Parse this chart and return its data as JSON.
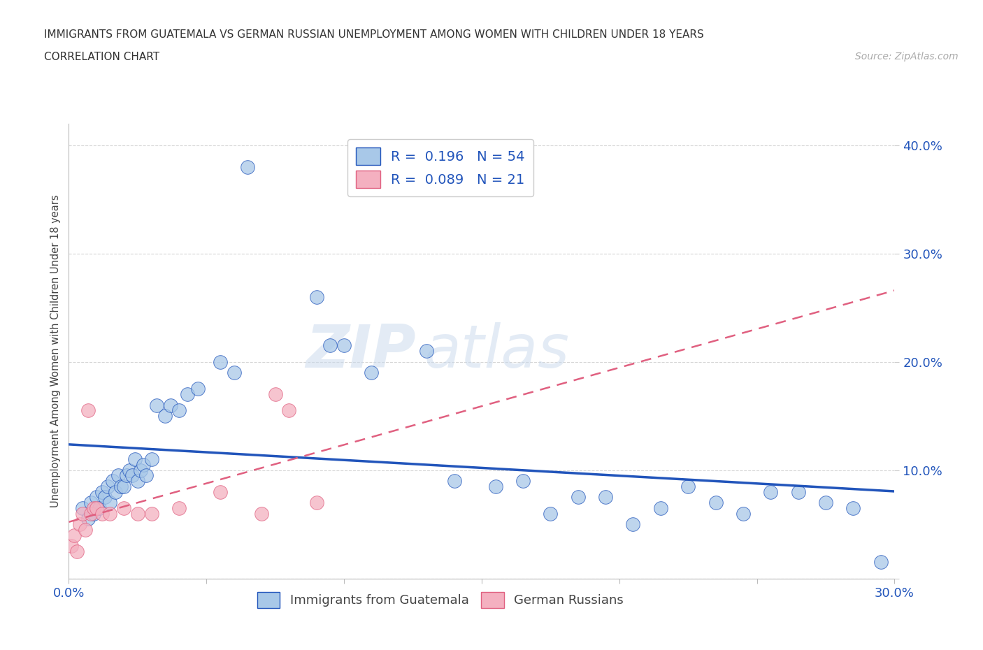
{
  "title_line1": "IMMIGRANTS FROM GUATEMALA VS GERMAN RUSSIAN UNEMPLOYMENT AMONG WOMEN WITH CHILDREN UNDER 18 YEARS",
  "title_line2": "CORRELATION CHART",
  "source_text": "Source: ZipAtlas.com",
  "ylabel": "Unemployment Among Women with Children Under 18 years",
  "xmin": 0.0,
  "xmax": 0.3,
  "ymin": 0.0,
  "ymax": 0.42,
  "xticks": [
    0.0,
    0.05,
    0.1,
    0.15,
    0.2,
    0.25,
    0.3
  ],
  "xtick_labels": [
    "0.0%",
    "",
    "",
    "",
    "",
    "",
    "30.0%"
  ],
  "yticks": [
    0.0,
    0.1,
    0.2,
    0.3,
    0.4
  ],
  "ytick_labels": [
    "",
    "10.0%",
    "20.0%",
    "30.0%",
    "40.0%"
  ],
  "color_blue": "#a8c8e8",
  "color_pink": "#f4b0c0",
  "line_blue": "#2255bb",
  "line_pink": "#e06080",
  "watermark_zip": "ZIP",
  "watermark_atlas": "atlas",
  "guatemala_x": [
    0.005,
    0.007,
    0.008,
    0.009,
    0.01,
    0.011,
    0.012,
    0.013,
    0.014,
    0.015,
    0.016,
    0.017,
    0.018,
    0.019,
    0.02,
    0.021,
    0.022,
    0.023,
    0.024,
    0.025,
    0.026,
    0.027,
    0.028,
    0.03,
    0.032,
    0.035,
    0.037,
    0.04,
    0.043,
    0.047,
    0.055,
    0.06,
    0.065,
    0.09,
    0.095,
    0.1,
    0.11,
    0.13,
    0.14,
    0.155,
    0.165,
    0.175,
    0.185,
    0.195,
    0.205,
    0.215,
    0.225,
    0.235,
    0.245,
    0.255,
    0.265,
    0.275,
    0.285,
    0.295
  ],
  "guatemala_y": [
    0.065,
    0.055,
    0.07,
    0.06,
    0.075,
    0.065,
    0.08,
    0.075,
    0.085,
    0.07,
    0.09,
    0.08,
    0.095,
    0.085,
    0.085,
    0.095,
    0.1,
    0.095,
    0.11,
    0.09,
    0.1,
    0.105,
    0.095,
    0.11,
    0.16,
    0.15,
    0.16,
    0.155,
    0.17,
    0.175,
    0.2,
    0.19,
    0.38,
    0.26,
    0.215,
    0.215,
    0.19,
    0.21,
    0.09,
    0.085,
    0.09,
    0.06,
    0.075,
    0.075,
    0.05,
    0.065,
    0.085,
    0.07,
    0.06,
    0.08,
    0.08,
    0.07,
    0.065,
    0.015
  ],
  "german_russian_x": [
    0.001,
    0.002,
    0.003,
    0.004,
    0.005,
    0.006,
    0.007,
    0.008,
    0.009,
    0.01,
    0.012,
    0.015,
    0.02,
    0.025,
    0.03,
    0.04,
    0.055,
    0.07,
    0.075,
    0.08,
    0.09
  ],
  "german_russian_y": [
    0.03,
    0.04,
    0.025,
    0.05,
    0.06,
    0.045,
    0.155,
    0.06,
    0.065,
    0.065,
    0.06,
    0.06,
    0.065,
    0.06,
    0.06,
    0.065,
    0.08,
    0.06,
    0.17,
    0.155,
    0.07
  ]
}
